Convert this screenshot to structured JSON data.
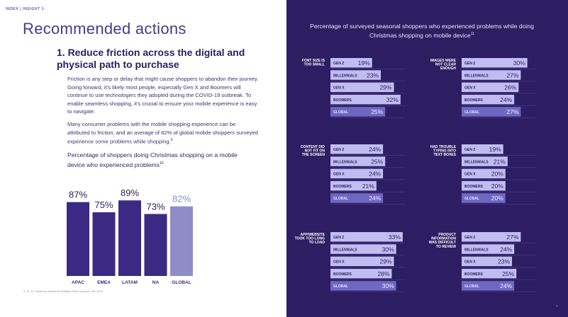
{
  "left": {
    "crumb": "INDEX | INSIGHT 1",
    "title": "Recommended actions",
    "heading": "1. Reduce friction across the digital and physical path to purchase",
    "paragraph1": "Friction is any step or delay that might cause shoppers to abandon their journey. Going forward, it’s likely most people, especially Gen X and Boomers will continue to use technologies they adopted during the COVID-19 outbreak. To enable seamless shopping, it’s crucial to ensure your mobile experience is easy to navigate.",
    "paragraph2_text": "Many consumer problems with the mobile shopping experience can be attributed to friction, and an average of 82% of global mobile shoppers surveyed experience some problems while shopping.",
    "paragraph2_sup": "9",
    "chart_subtitle": "Percentage of shoppers doing Christmas shopping on a mobile device who experienced problems",
    "chart_subtitle_sup": "10",
    "footnote": "9, 10, 11 \"Facebook Seasonal Holidays Study\" by Ipsos, Dec 2019."
  },
  "right": {
    "title": "Percentage of surveyed seasonal shoppers who experienced problems while doing Christmas shopping on mobile device",
    "title_sup": "11",
    "page_number": "7"
  },
  "colors": {
    "left_bar_dark": "#3b2a84",
    "left_bar_light": "#8e8cc9",
    "right_bg": "#2d1e63",
    "row_fill": "#c1bdf0",
    "global_fill": "#6f68c2"
  },
  "chart_data": [
    {
      "type": "bar",
      "categories": [
        "APAC",
        "EMEA",
        "LATAM",
        "NA",
        "GLOBAL"
      ],
      "values": [
        87,
        75,
        89,
        73,
        82
      ],
      "value_labels": [
        "87%",
        "75%",
        "89%",
        "73%",
        "82%"
      ],
      "ylim": [
        0,
        100
      ]
    },
    {
      "type": "bar",
      "title": "FONT SIZE IS TOO SMALL",
      "categories": [
        "GEN Z",
        "MILLENNIALS",
        "GEN X",
        "BOOMERS",
        "GLOBAL"
      ],
      "values": [
        19,
        23,
        29,
        32,
        25
      ],
      "value_labels": [
        "19%",
        "23%",
        "29%",
        "32%",
        "25%"
      ]
    },
    {
      "type": "bar",
      "title": "IMAGES WERE NOT CLEAR ENOUGH",
      "categories": [
        "GEN Z",
        "MILLENNIALS",
        "GEN X",
        "BOOMERS",
        "GLOBAL"
      ],
      "values": [
        30,
        27,
        26,
        24,
        27
      ],
      "value_labels": [
        "30%",
        "27%",
        "26%",
        "24%",
        "27%"
      ]
    },
    {
      "type": "bar",
      "title": "CONTENT DID NOT FIT ON THE SCREEN",
      "categories": [
        "GEN Z",
        "MILLENNIALS",
        "GEN X",
        "BOOMERS",
        "GLOBAL"
      ],
      "values": [
        24,
        25,
        24,
        21,
        24
      ],
      "value_labels": [
        "24%",
        "25%",
        "24%",
        "21%",
        "24%"
      ]
    },
    {
      "type": "bar",
      "title": "HAD TROUBLE TYPING INTO TEXT BOXES",
      "categories": [
        "GEN Z",
        "MILLENNIALS",
        "GEN X",
        "BOOMERS",
        "GLOBAL"
      ],
      "values": [
        19,
        21,
        20,
        20,
        20
      ],
      "value_labels": [
        "19%",
        "21%",
        "20%",
        "20%",
        "20%"
      ]
    },
    {
      "type": "bar",
      "title": "APP/WEBSITE TOOK TOO LONG TO LOAD",
      "categories": [
        "GEN Z",
        "MILLENNIALS",
        "GEN X",
        "BOOMERS",
        "GLOBAL"
      ],
      "values": [
        33,
        30,
        29,
        28,
        30
      ],
      "value_labels": [
        "33%",
        "30%",
        "29%",
        "28%",
        "30%"
      ]
    },
    {
      "type": "bar",
      "title": "PRODUCT INFORMATION WAS DIFFICULT TO REVIEW",
      "categories": [
        "GEN Z",
        "MILLENNIALS",
        "GEN X",
        "BOOMERS",
        "GLOBAL"
      ],
      "values": [
        27,
        24,
        23,
        25,
        24
      ],
      "value_labels": [
        "27%",
        "24%",
        "23%",
        "25%",
        "24%"
      ]
    }
  ]
}
